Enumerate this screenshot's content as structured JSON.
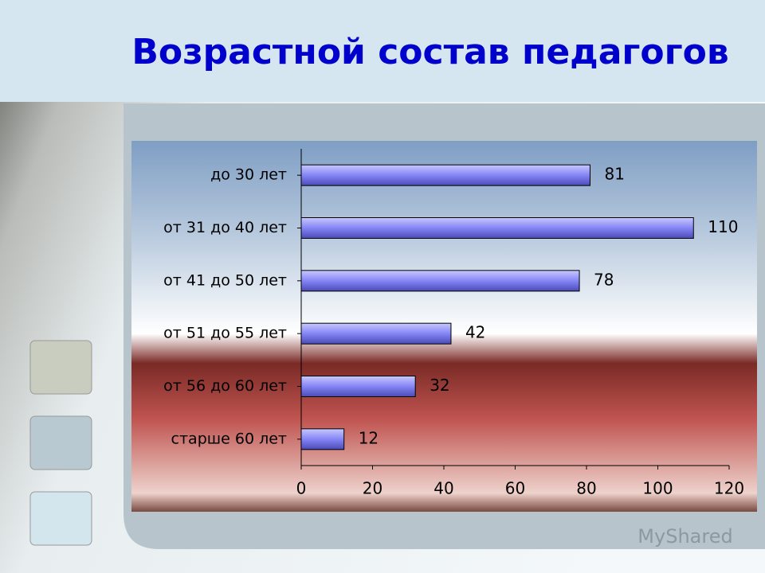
{
  "chart_data": {
    "type": "bar",
    "orientation": "horizontal",
    "title": "Возрастной состав педагогов",
    "categories": [
      "до 30 лет",
      "от 31 до 40 лет",
      "от 41 до 50 лет",
      "от 51 до 55 лет",
      "от 56 до 60 лет",
      "старше 60 лет"
    ],
    "values": [
      81,
      110,
      78,
      42,
      32,
      12
    ],
    "color": "#8585f5",
    "xlim": [
      0,
      120
    ],
    "xticks": [
      0,
      20,
      40,
      60,
      80,
      100,
      120
    ],
    "grid": false
  },
  "watermark": "MyShared"
}
